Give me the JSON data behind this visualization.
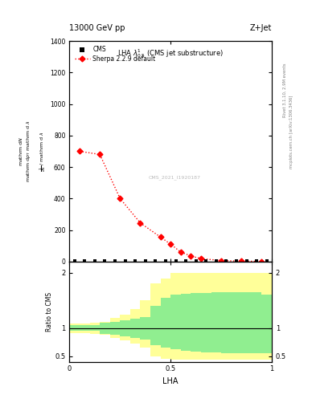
{
  "title_top": "13000 GeV pp",
  "title_right": "Z+Jet",
  "plot_title": "LHA $\\lambda^{1}_{0.5}$ (CMS jet substructure)",
  "cms_label": "CMS",
  "sherpa_label": "Sherpa 2.2.9 default",
  "cms_watermark": "CMS_2021_I1920187",
  "rivet_label": "Rivet 3.1.10, 2.9M events",
  "mcplots_label": "mcplots.cern.ch [arXiv:1306.3436]",
  "ylabel_main_lines": [
    "mathrm d$^2$N",
    "mathrm d$p_\\mathrm{T}$ mathrm d lambda",
    "",
    "1 / mathrm d N / mathrm d lambda"
  ],
  "ylabel_ratio": "Ratio to CMS",
  "xlabel": "LHA",
  "sherpa_x": [
    0.05,
    0.15,
    0.25,
    0.35,
    0.45,
    0.5,
    0.55,
    0.6,
    0.65,
    0.75,
    0.85,
    0.95
  ],
  "sherpa_y": [
    700,
    680,
    400,
    245,
    155,
    110,
    60,
    35,
    18,
    6,
    2,
    1
  ],
  "cms_x": [
    0.025,
    0.075,
    0.125,
    0.175,
    0.225,
    0.275,
    0.325,
    0.375,
    0.425,
    0.475,
    0.525,
    0.575,
    0.625,
    0.675,
    0.725,
    0.775,
    0.825,
    0.875,
    0.925,
    0.975
  ],
  "ylim_main": [
    0,
    1400
  ],
  "yticks_main": [
    0,
    200,
    400,
    600,
    800,
    1000,
    1200,
    1400
  ],
  "ratio_bin_edges": [
    0.0,
    0.05,
    0.1,
    0.15,
    0.2,
    0.25,
    0.3,
    0.35,
    0.4,
    0.45,
    0.5,
    0.55,
    0.6,
    0.65,
    0.7,
    0.75,
    0.8,
    0.85,
    0.9,
    0.95,
    1.0
  ],
  "ratio_green_lo": [
    0.95,
    0.95,
    0.95,
    0.9,
    0.88,
    0.85,
    0.83,
    0.8,
    0.7,
    0.65,
    0.62,
    0.6,
    0.58,
    0.57,
    0.56,
    0.55,
    0.55,
    0.55,
    0.55,
    0.55
  ],
  "ratio_green_hi": [
    1.05,
    1.05,
    1.05,
    1.1,
    1.12,
    1.15,
    1.17,
    1.2,
    1.4,
    1.55,
    1.6,
    1.62,
    1.63,
    1.64,
    1.65,
    1.65,
    1.65,
    1.65,
    1.65,
    1.6
  ],
  "ratio_yellow_lo": [
    0.92,
    0.92,
    0.9,
    0.88,
    0.82,
    0.78,
    0.72,
    0.65,
    0.5,
    0.45,
    0.43,
    0.43,
    0.43,
    0.43,
    0.43,
    0.43,
    0.43,
    0.43,
    0.43,
    0.43
  ],
  "ratio_yellow_hi": [
    1.08,
    1.08,
    1.1,
    1.12,
    1.18,
    1.25,
    1.35,
    1.5,
    1.8,
    1.9,
    2.0,
    2.0,
    2.0,
    2.0,
    2.0,
    2.0,
    2.0,
    2.0,
    2.0,
    2.0
  ],
  "ylim_ratio": [
    0.4,
    2.2
  ],
  "yticks_ratio": [
    0.5,
    1.0,
    2.0
  ],
  "xlim": [
    0.0,
    1.0
  ],
  "color_sherpa": "#FF0000",
  "color_cms_marker": "#000000",
  "color_green": "#90EE90",
  "color_yellow": "#FFFF99",
  "bg_color": "#FFFFFF"
}
